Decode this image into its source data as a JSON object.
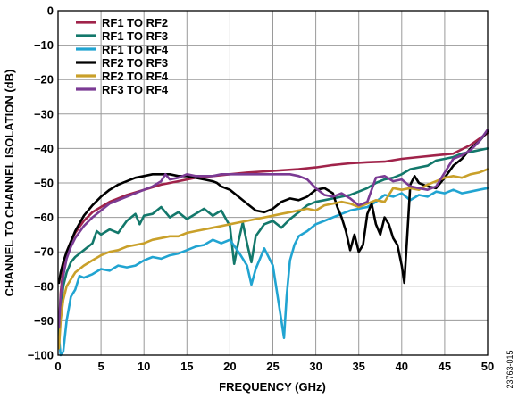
{
  "figure_id": "23763-015",
  "chart_data": {
    "type": "line",
    "xlabel": "FREQUENCY (GHz)",
    "ylabel": "CHANNEL TO CHANNEL ISOLATION (dB)",
    "xlim": [
      0,
      50
    ],
    "ylim": [
      -100,
      0
    ],
    "xticks": [
      0,
      5,
      10,
      15,
      20,
      25,
      30,
      35,
      40,
      45,
      50
    ],
    "yticks": [
      0,
      -10,
      -20,
      -30,
      -40,
      -50,
      -60,
      -70,
      -80,
      -90,
      -100
    ],
    "ytick_labels": [
      "0",
      "−10",
      "−20",
      "−30",
      "−40",
      "−50",
      "−60",
      "−70",
      "−80",
      "−90",
      "−100"
    ],
    "grid": true,
    "legend_position": "top-left",
    "series": [
      {
        "name": "RF1 TO RF2",
        "color": "#a0234a",
        "x": [
          0.1,
          0.3,
          0.6,
          1,
          1.5,
          2,
          3,
          4,
          5,
          6,
          8,
          10,
          12,
          14,
          16,
          18,
          20,
          22,
          25,
          28,
          30,
          32,
          34,
          36,
          38,
          40,
          42,
          44,
          46,
          48,
          50
        ],
        "y": [
          -92,
          -82,
          -75,
          -70,
          -67,
          -64.5,
          -61,
          -58.5,
          -57,
          -55.5,
          -53.5,
          -52,
          -50.5,
          -49.5,
          -48.5,
          -48,
          -47.5,
          -47,
          -46.5,
          -46,
          -45.5,
          -44.8,
          -44.3,
          -44,
          -43.8,
          -43,
          -42.5,
          -42,
          -41.5,
          -39,
          -35.5
        ]
      },
      {
        "name": "RF1 TO RF3",
        "color": "#13786b",
        "x": [
          0.1,
          0.3,
          0.6,
          1,
          1.5,
          2,
          3,
          4,
          4.5,
          5,
          6,
          7,
          8,
          9,
          9.5,
          10,
          11,
          12,
          13,
          14,
          15,
          16,
          17,
          18,
          19,
          20,
          20.5,
          21,
          21.5,
          22,
          22.5,
          23,
          24,
          25,
          26,
          27,
          28,
          29,
          30,
          31,
          32,
          33,
          34,
          35,
          36,
          37,
          38,
          39,
          40,
          41,
          42,
          43,
          44,
          45,
          46,
          47,
          48,
          49,
          50
        ],
        "y": [
          -94,
          -87,
          -80,
          -76,
          -73,
          -71.5,
          -69.5,
          -67.5,
          -64,
          -65,
          -63.5,
          -64.5,
          -61,
          -59,
          -62,
          -59.5,
          -59,
          -57,
          -60,
          -58.5,
          -60.5,
          -59,
          -57.5,
          -59.5,
          -58,
          -62.5,
          -73.5,
          -67,
          -61.5,
          -67.5,
          -73,
          -65.5,
          -62,
          -61,
          -63,
          -60.5,
          -58.5,
          -56.5,
          -55.5,
          -55,
          -54.5,
          -54,
          -53.5,
          -52.5,
          -51.5,
          -50,
          -49,
          -48.5,
          -47.5,
          -46,
          -45.5,
          -45,
          -43.5,
          -43,
          -42.5,
          -41.5,
          -41,
          -40.5,
          -40
        ]
      },
      {
        "name": "RF1 TO RF4",
        "color": "#21a4d1",
        "x": [
          0.1,
          0.3,
          0.6,
          1,
          1.5,
          2,
          2.5,
          3,
          4,
          5,
          6,
          7,
          8,
          9,
          10,
          11,
          12,
          13,
          14,
          15,
          16,
          17,
          18,
          19,
          20,
          21,
          22,
          22.5,
          23,
          24,
          25,
          25.5,
          26,
          26.3,
          26.6,
          27,
          27.5,
          28,
          29,
          30,
          31,
          32,
          33,
          34,
          35,
          36,
          37,
          38,
          39,
          40,
          41,
          42,
          43,
          44,
          45,
          46,
          47,
          48,
          49,
          50
        ],
        "y": [
          -95,
          -100,
          -99,
          -90,
          -83,
          -81,
          -77,
          -77.5,
          -76.5,
          -75,
          -75.5,
          -74,
          -74.5,
          -74,
          -72.5,
          -71.5,
          -72,
          -71,
          -70.5,
          -69.5,
          -68.5,
          -68,
          -66.5,
          -67.5,
          -66.5,
          -70,
          -74,
          -79.5,
          -75,
          -69,
          -74,
          -82,
          -90,
          -95,
          -83,
          -72.5,
          -68,
          -65.5,
          -64,
          -62,
          -61,
          -60,
          -59,
          -58,
          -57.5,
          -57,
          -55.5,
          -53.5,
          -54,
          -53,
          -55,
          -53.5,
          -54,
          -52.5,
          -53,
          -52,
          -53,
          -52.5,
          -52,
          -51.5
        ]
      },
      {
        "name": "RF2 TO RF3",
        "color": "#000000",
        "x": [
          0.1,
          0.3,
          0.6,
          1,
          1.5,
          2,
          3,
          4,
          5,
          6,
          7,
          8,
          9,
          10,
          11,
          12,
          13,
          14,
          15,
          16,
          17,
          18,
          18.5,
          19,
          20,
          21,
          22,
          23,
          24,
          25,
          26,
          27,
          28,
          29,
          30,
          31,
          32,
          32.5,
          33,
          33.5,
          34,
          34.5,
          35,
          35.5,
          36,
          36.5,
          37,
          37.5,
          38,
          38.5,
          39,
          39.5,
          40,
          40.3,
          40.6,
          41,
          41.5,
          42,
          43,
          44,
          45,
          46,
          47,
          48,
          49,
          50
        ],
        "y": [
          -79,
          -76,
          -73,
          -70,
          -67,
          -64,
          -59.5,
          -56.5,
          -54,
          -52,
          -50.5,
          -49.5,
          -48.5,
          -48,
          -47.5,
          -47.5,
          -47.5,
          -48,
          -48,
          -48.5,
          -49,
          -49.5,
          -50,
          -51,
          -52,
          -54,
          -56,
          -58,
          -58.5,
          -57.5,
          -55.5,
          -54.5,
          -55,
          -54,
          -52,
          -51.5,
          -53,
          -57,
          -60,
          -64,
          -69.5,
          -65,
          -70,
          -68,
          -59,
          -56,
          -62,
          -65,
          -60,
          -62,
          -66,
          -68,
          -74,
          -79,
          -67,
          -50.5,
          -48,
          -50,
          -51,
          -51.5,
          -48.5,
          -45,
          -43,
          -40,
          -38,
          -35
        ]
      },
      {
        "name": "RF2 TO RF4",
        "color": "#c9a02a",
        "x": [
          0.1,
          0.3,
          0.6,
          1,
          1.5,
          2,
          3,
          4,
          5,
          6,
          7,
          8,
          9,
          10,
          11,
          12,
          13,
          14,
          15,
          16,
          17,
          18,
          19,
          20,
          21,
          22,
          23,
          24,
          25,
          26,
          27,
          28,
          29,
          30,
          31,
          32,
          33,
          34,
          35,
          36,
          37,
          38,
          39,
          40,
          41,
          42,
          43,
          44,
          45,
          46,
          47,
          48,
          49,
          50
        ],
        "y": [
          -98,
          -90,
          -84,
          -80,
          -78,
          -76,
          -74,
          -72.5,
          -71,
          -70,
          -69.5,
          -68.5,
          -68,
          -67.5,
          -66.5,
          -66,
          -65.5,
          -65.5,
          -64.5,
          -64,
          -63.5,
          -63,
          -62.5,
          -62,
          -61.5,
          -61,
          -60.5,
          -60,
          -59.5,
          -59,
          -58.5,
          -58,
          -57.5,
          -58,
          -56.5,
          -56,
          -55.5,
          -56,
          -57,
          -56,
          -55,
          -55.5,
          -51.5,
          -52,
          -51.5,
          -52,
          -50.5,
          -49.5,
          -48.5,
          -48,
          -48.5,
          -47.5,
          -47,
          -46
        ]
      },
      {
        "name": "RF3 TO RF4",
        "color": "#7b3b94",
        "x": [
          0.1,
          0.3,
          0.6,
          1,
          1.5,
          2,
          3,
          4,
          5,
          6,
          7,
          8,
          9,
          10,
          11,
          12,
          12.5,
          13,
          14,
          15,
          16,
          17,
          18,
          19,
          20,
          21,
          22,
          23,
          24,
          25,
          26,
          27,
          28,
          29,
          30,
          31,
          32,
          33,
          34,
          35,
          36,
          37,
          38,
          39,
          40,
          41,
          42,
          43,
          44,
          45,
          46,
          47,
          48,
          49,
          50
        ],
        "y": [
          -92,
          -83,
          -77,
          -72,
          -68.5,
          -66,
          -62.5,
          -60,
          -58,
          -56,
          -55,
          -54,
          -53,
          -52,
          -51,
          -49.5,
          -47.5,
          -49,
          -48.5,
          -47.5,
          -48,
          -48,
          -48,
          -47.5,
          -47.5,
          -47.5,
          -47.5,
          -47.5,
          -47.5,
          -47.5,
          -47.5,
          -47.5,
          -48,
          -49,
          -51.5,
          -53.5,
          -54,
          -53,
          -54.5,
          -56.5,
          -55.5,
          -48.5,
          -48,
          -49.5,
          -49,
          -51,
          -51.5,
          -52,
          -51,
          -47,
          -43,
          -42,
          -40.5,
          -38,
          -34.5
        ]
      }
    ]
  }
}
